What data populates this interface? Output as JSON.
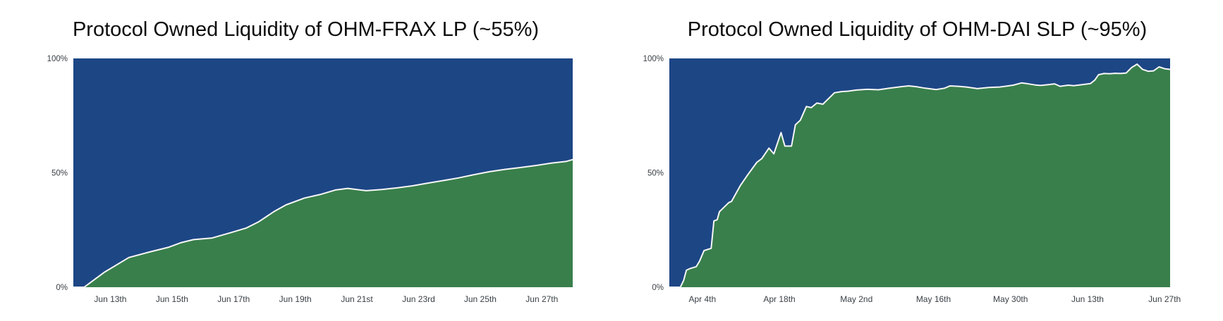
{
  "page": {
    "background": "#ffffff",
    "description_colors": {
      "protocol_owned_area_green": "#397f4b",
      "remainder_area_blue": "#1d4685",
      "boundary_line": "#f7f7f7",
      "title_text": "#0d0d0d",
      "axis_text": "#3a4045"
    }
  },
  "chart_data": [
    {
      "type": "area",
      "title": "Protocol Owned Liquidity of OHM-FRAX LP (~55%)",
      "stacked_percent": true,
      "grid": false,
      "legend": "none",
      "ylim": [
        0,
        100
      ],
      "y_ticks": [
        {
          "v": 0,
          "label": "0%"
        },
        {
          "v": 50,
          "label": "50%"
        },
        {
          "v": 100,
          "label": "100%"
        }
      ],
      "x_domain": [
        0,
        16.2
      ],
      "x_unit": "days (day 0 ≈ Jun 12)",
      "x_ticks": [
        {
          "x": 1.2,
          "label": "Jun 13th"
        },
        {
          "x": 3.2,
          "label": "Jun 15th"
        },
        {
          "x": 5.2,
          "label": "Jun 17th"
        },
        {
          "x": 7.2,
          "label": "Jun 19th"
        },
        {
          "x": 9.2,
          "label": "Jun 21st"
        },
        {
          "x": 11.2,
          "label": "Jun 23rd"
        },
        {
          "x": 13.2,
          "label": "Jun 25th"
        },
        {
          "x": 15.2,
          "label": "Jun 27th"
        }
      ],
      "series_semantics": "points = protocol-owned share (%) of OHM-FRAX LP; green area below line, blue area above (remainder to 100%)",
      "points": [
        [
          0,
          0
        ],
        [
          0.35,
          0
        ],
        [
          1,
          6.5
        ],
        [
          1.8,
          13
        ],
        [
          2.5,
          15.5
        ],
        [
          3.1,
          17.5
        ],
        [
          3.5,
          19.5
        ],
        [
          3.9,
          20.8
        ],
        [
          4.5,
          21.5
        ],
        [
          5.1,
          23.8
        ],
        [
          5.6,
          25.8
        ],
        [
          6,
          28.5
        ],
        [
          6.5,
          33
        ],
        [
          6.9,
          36
        ],
        [
          7.5,
          39
        ],
        [
          8,
          40.5
        ],
        [
          8.5,
          42.5
        ],
        [
          8.9,
          43.2
        ],
        [
          9.5,
          42.2
        ],
        [
          10,
          42.7
        ],
        [
          10.5,
          43.4
        ],
        [
          11,
          44.3
        ],
        [
          11.5,
          45.5
        ],
        [
          12,
          46.6
        ],
        [
          12.5,
          47.8
        ],
        [
          13,
          49.2
        ],
        [
          13.5,
          50.5
        ],
        [
          14,
          51.5
        ],
        [
          14.5,
          52.3
        ],
        [
          15,
          53.2
        ],
        [
          15.5,
          54.2
        ],
        [
          16,
          55
        ],
        [
          16.2,
          55.8
        ]
      ]
    },
    {
      "type": "area",
      "title": "Protocol Owned Liquidity of OHM-DAI SLP (~95%)",
      "stacked_percent": true,
      "grid": false,
      "legend": "none",
      "ylim": [
        0,
        100
      ],
      "y_ticks": [
        {
          "v": 0,
          "label": "0%"
        },
        {
          "v": 50,
          "label": "50%"
        },
        {
          "v": 100,
          "label": "100%"
        }
      ],
      "x_domain": [
        0,
        91
      ],
      "x_unit": "days (day 0 ≈ Mar 29)",
      "x_ticks": [
        {
          "x": 6,
          "label": "Apr 4th"
        },
        {
          "x": 20,
          "label": "Apr 18th"
        },
        {
          "x": 34,
          "label": "May 2nd"
        },
        {
          "x": 48,
          "label": "May 16th"
        },
        {
          "x": 62,
          "label": "May 30th"
        },
        {
          "x": 76,
          "label": "Jun 13th"
        },
        {
          "x": 90,
          "label": "Jun 27th"
        }
      ],
      "series_semantics": "points = protocol-owned share (%) of OHM-DAI SLP; green area below line, blue area above (remainder to 100%)",
      "points": [
        [
          0,
          0
        ],
        [
          2,
          0
        ],
        [
          2.6,
          3
        ],
        [
          3.1,
          7.4
        ],
        [
          3.8,
          8.2
        ],
        [
          4.9,
          9
        ],
        [
          5.5,
          11.4
        ],
        [
          6.3,
          16
        ],
        [
          7.6,
          17
        ],
        [
          8.1,
          29
        ],
        [
          8.7,
          29.5
        ],
        [
          9.1,
          33
        ],
        [
          10.8,
          37
        ],
        [
          11.3,
          37.5
        ],
        [
          12.9,
          44.4
        ],
        [
          14.2,
          49
        ],
        [
          15.9,
          54.6
        ],
        [
          16.8,
          56.2
        ],
        [
          18.1,
          60.8
        ],
        [
          19,
          58.3
        ],
        [
          20.3,
          67.6
        ],
        [
          21,
          61.7
        ],
        [
          22.2,
          61.7
        ],
        [
          22.9,
          71
        ],
        [
          23.8,
          73
        ],
        [
          24.9,
          79
        ],
        [
          25.8,
          78.5
        ],
        [
          26.8,
          80.5
        ],
        [
          27.9,
          80
        ],
        [
          30,
          85
        ],
        [
          31.3,
          85.5
        ],
        [
          32.5,
          85.7
        ],
        [
          34,
          86.2
        ],
        [
          36,
          86.5
        ],
        [
          38,
          86.3
        ],
        [
          40,
          87
        ],
        [
          42,
          87.6
        ],
        [
          43.5,
          88
        ],
        [
          45,
          87.6
        ],
        [
          46.5,
          87
        ],
        [
          48.5,
          86.4
        ],
        [
          50,
          87
        ],
        [
          51,
          88
        ],
        [
          52.5,
          87.8
        ],
        [
          54,
          87.5
        ],
        [
          56,
          86.8
        ],
        [
          58,
          87.3
        ],
        [
          60,
          87.5
        ],
        [
          61,
          87.8
        ],
        [
          62.5,
          88.3
        ],
        [
          64,
          89.3
        ],
        [
          65,
          89
        ],
        [
          66.5,
          88.4
        ],
        [
          67.5,
          88.2
        ],
        [
          69,
          88.6
        ],
        [
          70,
          88.9
        ],
        [
          71,
          87.8
        ],
        [
          72.5,
          88.3
        ],
        [
          73.5,
          88.1
        ],
        [
          74.5,
          88.4
        ],
        [
          75.5,
          88.7
        ],
        [
          76.5,
          89
        ],
        [
          77.3,
          90.5
        ],
        [
          78,
          92.9
        ],
        [
          79,
          93.4
        ],
        [
          80,
          93.3
        ],
        [
          81,
          93.5
        ],
        [
          82,
          93.4
        ],
        [
          83,
          93.6
        ],
        [
          84,
          96
        ],
        [
          85,
          97.5
        ],
        [
          86,
          95.2
        ],
        [
          87,
          94.4
        ],
        [
          88,
          94.6
        ],
        [
          89,
          96.3
        ],
        [
          90,
          95.5
        ],
        [
          91,
          95.2
        ]
      ]
    }
  ]
}
